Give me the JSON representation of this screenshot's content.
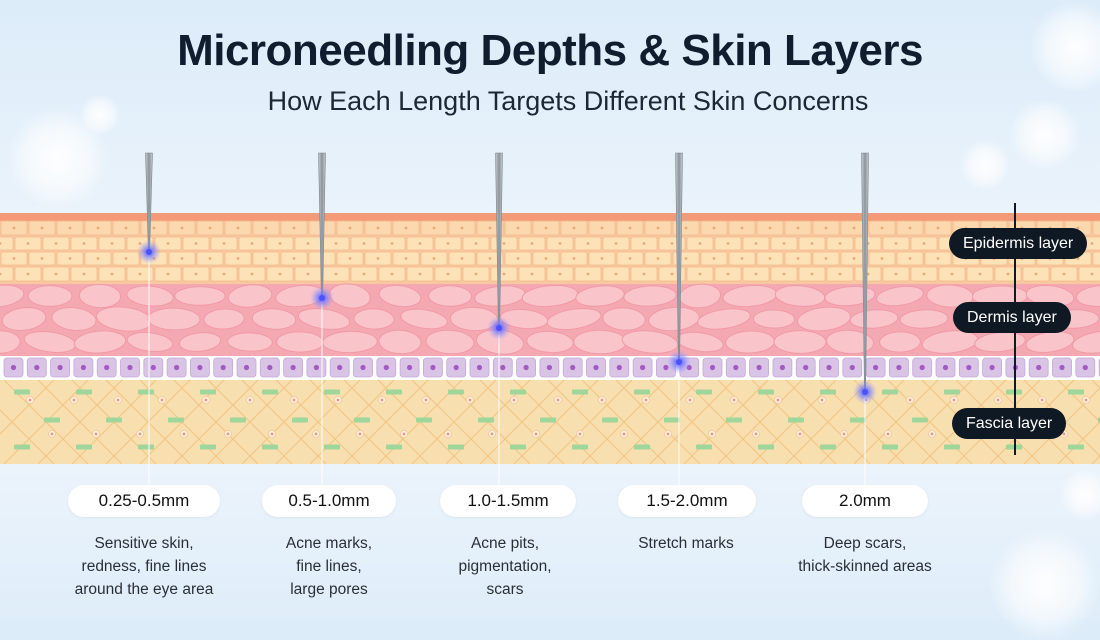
{
  "title": "Microneedling Depths & Skin Layers",
  "subtitle": "How Each Length Targets Different Skin Concerns",
  "layers": [
    {
      "label": "Epidermis layer",
      "color": "#f6c69a"
    },
    {
      "label": "Dermis layer",
      "color": "#f3a6b0"
    },
    {
      "label": "Fascia layer",
      "color": "#f7d9a6"
    }
  ],
  "needles": [
    {
      "depth": "0.25-0.5mm",
      "concern_lines": [
        "Sensitive skin,",
        "redness, fine lines",
        "around the eye area"
      ]
    },
    {
      "depth": "0.5-1.0mm",
      "concern_lines": [
        "Acne marks,",
        "fine lines,",
        "large pores"
      ]
    },
    {
      "depth": "1.0-1.5mm",
      "concern_lines": [
        "Acne pits,",
        "pigmentation,",
        "scars"
      ]
    },
    {
      "depth": "1.5-2.0mm",
      "concern_lines": [
        "Stretch marks"
      ]
    },
    {
      "depth": "2.0mm",
      "concern_lines": [
        "Deep scars,",
        "thick-skinned areas"
      ]
    }
  ],
  "colors": {
    "needle": "#9aa3ad",
    "tip_glow": "#5a66ff",
    "label_bg": "#0f1923",
    "membrane": "#d9c4e6",
    "cell_nucleus": "#a15bc1"
  }
}
